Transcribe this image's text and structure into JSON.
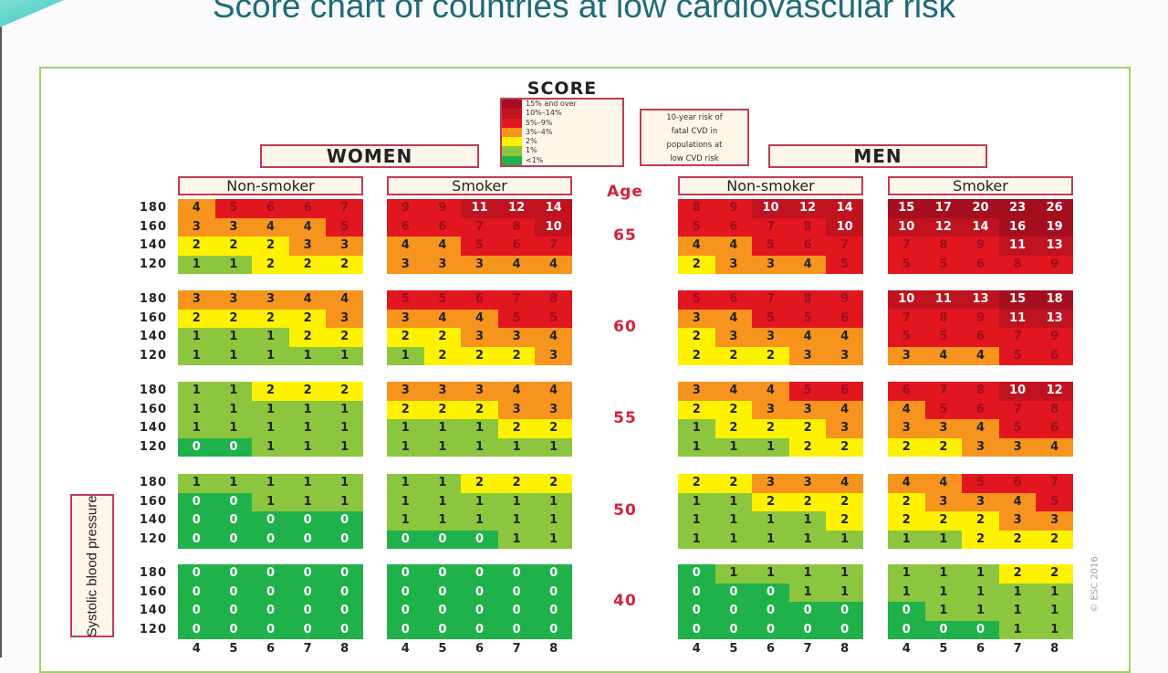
{
  "title": "Score chart of countries at low cardiovascular risk",
  "logo": "SCORE",
  "legend": [
    {
      "label": "15% and over",
      "color": "#a50e1e"
    },
    {
      "label": "10%–14%",
      "color": "#c1121f"
    },
    {
      "label": "5%–9%",
      "color": "#e2161f"
    },
    {
      "label": "3%–4%",
      "color": "#f7941d"
    },
    {
      "label": "2%",
      "color": "#fff200"
    },
    {
      "label": "1%",
      "color": "#8cc63f"
    },
    {
      "label": "<1%",
      "color": "#1fb24a"
    }
  ],
  "info_lines": [
    "10-year risk of",
    "fatal CVD in",
    "populations at",
    "low CVD risk"
  ],
  "sex_labels": {
    "women": "WOMEN",
    "men": "MEN"
  },
  "age_header": "Age",
  "y_axis_label": "Systolic blood pressure",
  "copyright": "© ESC 2016",
  "chart_data": {
    "type": "heatmap",
    "title": "Score chart of countries at low cardiovascular risk",
    "ylabel": "Systolic blood pressure",
    "ages": [
      "65",
      "60",
      "55",
      "50",
      "40"
    ],
    "sbp_rows": [
      "180",
      "160",
      "140",
      "120"
    ],
    "cholesterol_cols": [
      "4",
      "5",
      "6",
      "7",
      "8"
    ],
    "panels": [
      {
        "sex": "WOMEN",
        "label": "Non-smoker",
        "values": [
          [
            [
              4,
              5,
              6,
              6,
              7
            ],
            [
              3,
              3,
              4,
              4,
              5
            ],
            [
              2,
              2,
              2,
              3,
              3
            ],
            [
              1,
              1,
              2,
              2,
              2
            ]
          ],
          [
            [
              3,
              3,
              3,
              4,
              4
            ],
            [
              2,
              2,
              2,
              2,
              3
            ],
            [
              1,
              1,
              1,
              2,
              2
            ],
            [
              1,
              1,
              1,
              1,
              1
            ]
          ],
          [
            [
              1,
              1,
              2,
              2,
              2
            ],
            [
              1,
              1,
              1,
              1,
              1
            ],
            [
              1,
              1,
              1,
              1,
              1
            ],
            [
              0,
              0,
              1,
              1,
              1
            ]
          ],
          [
            [
              1,
              1,
              1,
              1,
              1
            ],
            [
              0,
              0,
              1,
              1,
              1
            ],
            [
              0,
              0,
              0,
              0,
              0
            ],
            [
              0,
              0,
              0,
              0,
              0
            ]
          ],
          [
            [
              0,
              0,
              0,
              0,
              0
            ],
            [
              0,
              0,
              0,
              0,
              0
            ],
            [
              0,
              0,
              0,
              0,
              0
            ],
            [
              0,
              0,
              0,
              0,
              0
            ]
          ]
        ]
      },
      {
        "sex": "WOMEN",
        "label": "Smoker",
        "values": [
          [
            [
              9,
              9,
              11,
              12,
              14
            ],
            [
              6,
              6,
              7,
              8,
              10
            ],
            [
              4,
              4,
              5,
              6,
              7
            ],
            [
              3,
              3,
              3,
              4,
              4
            ]
          ],
          [
            [
              5,
              5,
              6,
              7,
              8
            ],
            [
              3,
              4,
              4,
              5,
              5
            ],
            [
              2,
              2,
              3,
              3,
              4
            ],
            [
              1,
              2,
              2,
              2,
              3
            ]
          ],
          [
            [
              3,
              3,
              3,
              4,
              4
            ],
            [
              2,
              2,
              2,
              3,
              3
            ],
            [
              1,
              1,
              1,
              2,
              2
            ],
            [
              1,
              1,
              1,
              1,
              1
            ]
          ],
          [
            [
              1,
              1,
              2,
              2,
              2
            ],
            [
              1,
              1,
              1,
              1,
              1
            ],
            [
              1,
              1,
              1,
              1,
              1
            ],
            [
              0,
              0,
              0,
              1,
              1
            ]
          ],
          [
            [
              0,
              0,
              0,
              0,
              0
            ],
            [
              0,
              0,
              0,
              0,
              0
            ],
            [
              0,
              0,
              0,
              0,
              0
            ],
            [
              0,
              0,
              0,
              0,
              0
            ]
          ]
        ]
      },
      {
        "sex": "MEN",
        "label": "Non-smoker",
        "values": [
          [
            [
              8,
              9,
              10,
              12,
              14
            ],
            [
              5,
              6,
              7,
              8,
              10
            ],
            [
              4,
              4,
              5,
              6,
              7
            ],
            [
              2,
              3,
              3,
              4,
              5
            ]
          ],
          [
            [
              5,
              6,
              7,
              8,
              9
            ],
            [
              3,
              4,
              5,
              5,
              6
            ],
            [
              2,
              3,
              3,
              4,
              4
            ],
            [
              2,
              2,
              2,
              3,
              3
            ]
          ],
          [
            [
              3,
              4,
              4,
              5,
              6
            ],
            [
              2,
              2,
              3,
              3,
              4
            ],
            [
              1,
              2,
              2,
              2,
              3
            ],
            [
              1,
              1,
              1,
              2,
              2
            ]
          ],
          [
            [
              2,
              2,
              3,
              3,
              4
            ],
            [
              1,
              1,
              2,
              2,
              2
            ],
            [
              1,
              1,
              1,
              1,
              2
            ],
            [
              1,
              1,
              1,
              1,
              1
            ]
          ],
          [
            [
              0,
              1,
              1,
              1,
              1
            ],
            [
              0,
              0,
              0,
              1,
              1
            ],
            [
              0,
              0,
              0,
              0,
              0
            ],
            [
              0,
              0,
              0,
              0,
              0
            ]
          ]
        ]
      },
      {
        "sex": "MEN",
        "label": "Smoker",
        "values": [
          [
            [
              15,
              17,
              20,
              23,
              26
            ],
            [
              10,
              12,
              14,
              16,
              19
            ],
            [
              7,
              8,
              9,
              11,
              13
            ],
            [
              5,
              5,
              6,
              8,
              9
            ]
          ],
          [
            [
              10,
              11,
              13,
              15,
              18
            ],
            [
              7,
              8,
              9,
              11,
              13
            ],
            [
              5,
              5,
              6,
              7,
              9
            ],
            [
              3,
              4,
              4,
              5,
              6
            ]
          ],
          [
            [
              6,
              7,
              8,
              10,
              12
            ],
            [
              4,
              5,
              6,
              7,
              8
            ],
            [
              3,
              3,
              4,
              5,
              6
            ],
            [
              2,
              2,
              3,
              3,
              4
            ]
          ],
          [
            [
              4,
              4,
              5,
              6,
              7
            ],
            [
              2,
              3,
              3,
              4,
              5
            ],
            [
              2,
              2,
              2,
              3,
              3
            ],
            [
              1,
              1,
              2,
              2,
              2
            ]
          ],
          [
            [
              1,
              1,
              1,
              2,
              2
            ],
            [
              1,
              1,
              1,
              1,
              1
            ],
            [
              0,
              1,
              1,
              1,
              1
            ],
            [
              0,
              0,
              0,
              1,
              1
            ]
          ]
        ]
      }
    ]
  }
}
